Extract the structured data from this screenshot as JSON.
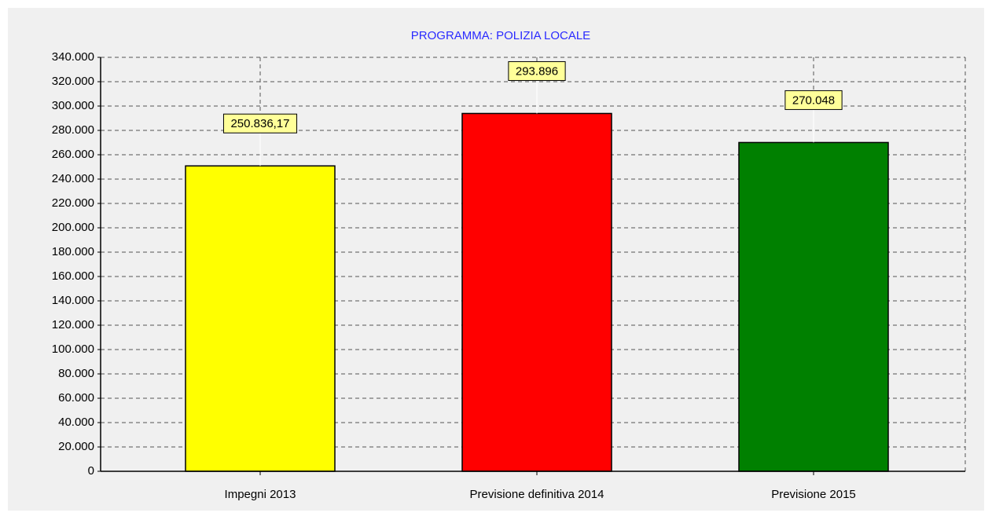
{
  "chart_data": {
    "type": "bar",
    "title": "PROGRAMMA: POLIZIA LOCALE",
    "categories": [
      "Impegni 2013",
      "Previsione definitiva 2014",
      "Previsione 2015"
    ],
    "values": [
      250836.17,
      293896,
      270048
    ],
    "value_labels": [
      "250.836,17",
      "293.896",
      "270.048"
    ],
    "colors": [
      "#ffff00",
      "#ff0000",
      "#008000"
    ],
    "ylim": [
      0,
      340000
    ],
    "yticks": [
      0,
      {
        "value": 20000,
        "label": "20.000"
      },
      {
        "value": 40000,
        "label": "40.000"
      },
      {
        "value": 60000,
        "label": "60.000"
      },
      {
        "value": 80000,
        "label": "80.000"
      },
      {
        "value": 100000,
        "label": "100.000"
      },
      {
        "value": 120000,
        "label": "120.000"
      },
      {
        "value": 140000,
        "label": "140.000"
      },
      {
        "value": 160000,
        "label": "160.000"
      },
      {
        "value": 180000,
        "label": "180.000"
      },
      {
        "value": 200000,
        "label": "200.000"
      },
      {
        "value": 220000,
        "label": "220.000"
      },
      {
        "value": 240000,
        "label": "240.000"
      },
      {
        "value": 260000,
        "label": "260.000"
      },
      {
        "value": 280000,
        "label": "280.000"
      },
      {
        "value": 300000,
        "label": "300.000"
      },
      {
        "value": 320000,
        "label": "320.000"
      },
      {
        "value": 340000,
        "label": "340.000"
      }
    ],
    "grid": true
  }
}
